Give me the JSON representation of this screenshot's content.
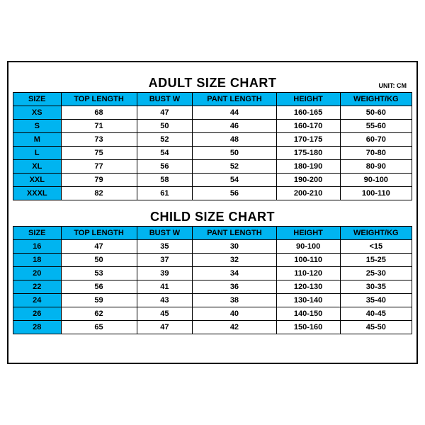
{
  "unit_label": "UNIT: CM",
  "adult": {
    "title": "ADULT SIZE CHART",
    "columns": [
      "SIZE",
      "TOP LENGTH",
      "BUST W",
      "PANT LENGTH",
      "HEIGHT",
      "WEIGHT/KG"
    ],
    "rows": [
      [
        "XS",
        "68",
        "47",
        "44",
        "160-165",
        "50-60"
      ],
      [
        "S",
        "71",
        "50",
        "46",
        "160-170",
        "55-60"
      ],
      [
        "M",
        "73",
        "52",
        "48",
        "170-175",
        "60-70"
      ],
      [
        "L",
        "75",
        "54",
        "50",
        "175-180",
        "70-80"
      ],
      [
        "XL",
        "77",
        "56",
        "52",
        "180-190",
        "80-90"
      ],
      [
        "XXL",
        "79",
        "58",
        "54",
        "190-200",
        "90-100"
      ],
      [
        "XXXL",
        "82",
        "61",
        "56",
        "200-210",
        "100-110"
      ]
    ]
  },
  "child": {
    "title": "CHILD SIZE CHART",
    "columns": [
      "SIZE",
      "TOP LENGTH",
      "BUST W",
      "PANT LENGTH",
      "HEIGHT",
      "WEIGHT/KG"
    ],
    "rows": [
      [
        "16",
        "47",
        "35",
        "30",
        "90-100",
        "<15"
      ],
      [
        "18",
        "50",
        "37",
        "32",
        "100-110",
        "15-25"
      ],
      [
        "20",
        "53",
        "39",
        "34",
        "110-120",
        "25-30"
      ],
      [
        "22",
        "56",
        "41",
        "36",
        "120-130",
        "30-35"
      ],
      [
        "24",
        "59",
        "43",
        "38",
        "130-140",
        "35-40"
      ],
      [
        "26",
        "62",
        "45",
        "40",
        "140-150",
        "40-45"
      ],
      [
        "28",
        "65",
        "47",
        "42",
        "150-160",
        "45-50"
      ]
    ]
  },
  "colors": {
    "header_bg": "#00b4f0",
    "border": "#000000",
    "background": "#ffffff"
  }
}
